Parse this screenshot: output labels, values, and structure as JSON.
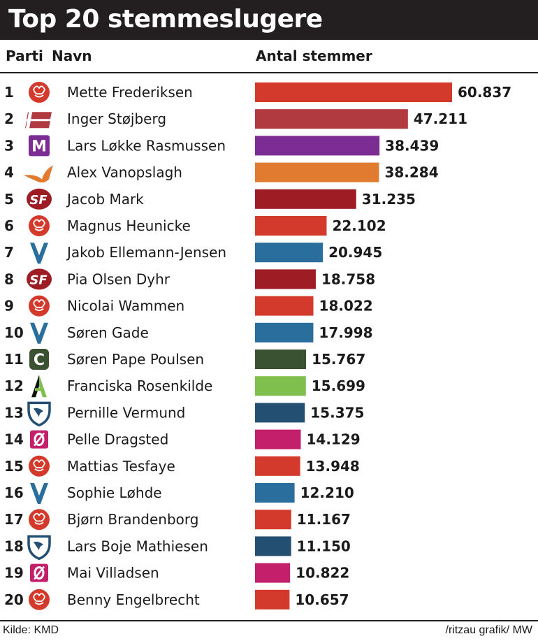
{
  "title": "Top 20 stemmeslugere",
  "headers": {
    "party": "Parti",
    "name": "Navn",
    "votes": "Antal stemmer"
  },
  "footer": {
    "source": "Kilde: KMD",
    "credit": "/ritzau grafik/ MW"
  },
  "colors": {
    "title_bg": "#231f20",
    "A": "#d33a2c",
    "DD": "#b03a40",
    "M": "#7b2d93",
    "LA": "#e07b2f",
    "SF": "#9e1c23",
    "V": "#2a6e9e",
    "C": "#3b5232",
    "ALT": "#7fbf4d",
    "DF": "#234f72",
    "OE": "#c41f6a"
  },
  "chart_data": {
    "type": "bar",
    "orientation": "horizontal",
    "title": "Top 20 stemmeslugere",
    "xlabel": "Antal stemmer",
    "xlim": [
      0,
      60837
    ],
    "grid": false,
    "legend": "none",
    "rows": [
      {
        "rank": "1",
        "party": "A",
        "party_icon": "rose-icon",
        "name": "Mette Frederiksen",
        "value": 60837,
        "label": "60.837"
      },
      {
        "rank": "2",
        "party": "DD",
        "party_icon": "danmarksdemokraterne-flag-icon",
        "name": "Inger Støjberg",
        "value": 47211,
        "label": "47.211"
      },
      {
        "rank": "3",
        "party": "M",
        "party_icon": "moderaterne-m-icon",
        "name": "Lars Løkke Rasmussen",
        "value": 38439,
        "label": "38.439"
      },
      {
        "rank": "4",
        "party": "LA",
        "party_icon": "liberal-alliance-bird-icon",
        "name": "Alex Vanopslagh",
        "value": 38284,
        "label": "38.284"
      },
      {
        "rank": "5",
        "party": "SF",
        "party_icon": "sf-logo-icon",
        "name": "Jacob Mark",
        "value": 31235,
        "label": "31.235"
      },
      {
        "rank": "6",
        "party": "A",
        "party_icon": "rose-icon",
        "name": "Magnus Heunicke",
        "value": 22102,
        "label": "22.102"
      },
      {
        "rank": "7",
        "party": "V",
        "party_icon": "venstre-v-icon",
        "name": "Jakob Ellemann-Jensen",
        "value": 20945,
        "label": "20.945"
      },
      {
        "rank": "8",
        "party": "SF",
        "party_icon": "sf-logo-icon",
        "name": "Pia Olsen Dyhr",
        "value": 18758,
        "label": "18.758"
      },
      {
        "rank": "9",
        "party": "A",
        "party_icon": "rose-icon",
        "name": "Nicolai Wammen",
        "value": 18022,
        "label": "18.022"
      },
      {
        "rank": "10",
        "party": "V",
        "party_icon": "venstre-v-icon",
        "name": "Søren Gade",
        "value": 17998,
        "label": "17.998"
      },
      {
        "rank": "11",
        "party": "C",
        "party_icon": "konservative-c-icon",
        "name": "Søren Pape Poulsen",
        "value": 15767,
        "label": "15.767"
      },
      {
        "rank": "12",
        "party": "ALT",
        "party_icon": "alternativet-a-icon",
        "name": "Franciska Rosenkilde",
        "value": 15699,
        "label": "15.699"
      },
      {
        "rank": "13",
        "party": "DF",
        "party_icon": "df-shield-icon",
        "name": "Pernille Vermund",
        "value": 15375,
        "label": "15.375"
      },
      {
        "rank": "14",
        "party": "OE",
        "party_icon": "enhedslisten-o-icon",
        "name": "Pelle Dragsted",
        "value": 14129,
        "label": "14.129"
      },
      {
        "rank": "15",
        "party": "A",
        "party_icon": "rose-icon",
        "name": "Mattias Tesfaye",
        "value": 13948,
        "label": "13.948"
      },
      {
        "rank": "16",
        "party": "V",
        "party_icon": "venstre-v-icon",
        "name": "Sophie Løhde",
        "value": 12210,
        "label": "12.210"
      },
      {
        "rank": "17",
        "party": "A",
        "party_icon": "rose-icon",
        "name": "Bjørn Brandenborg",
        "value": 11167,
        "label": "11.167"
      },
      {
        "rank": "18",
        "party": "DF",
        "party_icon": "df-shield-icon",
        "name": "Lars Boje Mathiesen",
        "value": 11150,
        "label": "11.150"
      },
      {
        "rank": "19",
        "party": "OE",
        "party_icon": "enhedslisten-o-icon",
        "name": "Mai Villadsen",
        "value": 10822,
        "label": "10.822"
      },
      {
        "rank": "20",
        "party": "A",
        "party_icon": "rose-icon",
        "name": "Benny Engelbrecht",
        "value": 10657,
        "label": "10.657"
      }
    ]
  }
}
